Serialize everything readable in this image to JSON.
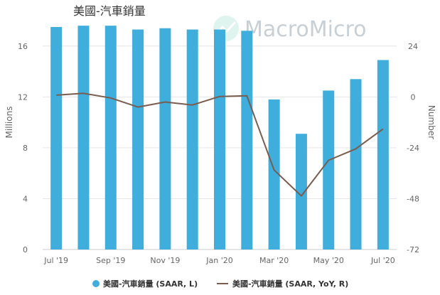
{
  "chart_data": {
    "type": "bar",
    "title": "美國-汽車銷量",
    "xlabel": "",
    "ylabel_left": "Millions",
    "ylabel_right": "Number",
    "categories": [
      "Jul '19",
      "Aug '19",
      "Sep '19",
      "Oct '19",
      "Nov '19",
      "Dec '19",
      "Jan '20",
      "Feb '20",
      "Mar '20",
      "Apr '20",
      "May '20",
      "Jun '20",
      "Jul '20"
    ],
    "x_tick_labels": [
      "Jul '19",
      "Sep '19",
      "Nov '19",
      "Jan '20",
      "Mar '20",
      "May '20",
      "Jul '20"
    ],
    "ylim_left": [
      0,
      18
    ],
    "yticks_left": [
      0,
      4,
      8,
      12,
      16
    ],
    "ylim_right": [
      -72,
      36
    ],
    "yticks_right": [
      -72,
      -48,
      -24,
      0,
      24
    ],
    "grid": true,
    "legend_position": "bottom",
    "series": [
      {
        "name": "美國-汽車銷量 (SAAR, L)",
        "type": "bar",
        "axis": "left",
        "color": "#40aedc",
        "values": [
          17.5,
          17.6,
          17.6,
          17.3,
          17.4,
          17.3,
          17.3,
          17.2,
          11.8,
          9.1,
          12.5,
          13.4,
          14.9
        ]
      },
      {
        "name": "美國-汽車銷量 (SAAR, YoY, R)",
        "type": "line",
        "axis": "right",
        "color": "#7a5c4f",
        "values": [
          0.8,
          1.7,
          -0.5,
          -4.8,
          -2.4,
          -3.8,
          0.2,
          0.5,
          -34.5,
          -46.7,
          -29.9,
          -24.5,
          -15.1
        ]
      }
    ]
  },
  "watermark": {
    "text": "MacroMicro",
    "icon": "macromicro-logo-icon"
  }
}
